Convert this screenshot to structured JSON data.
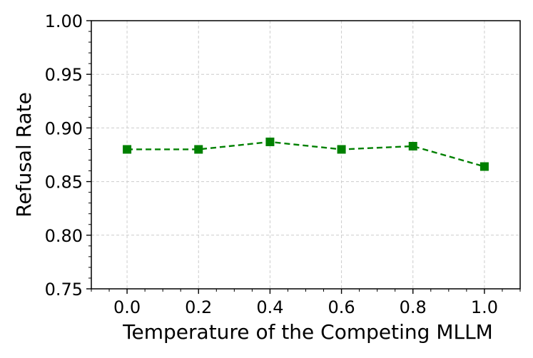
{
  "chart_data": {
    "type": "line",
    "title": "",
    "xlabel": "Temperature of the Competing MLLM",
    "ylabel": "Refusal Rate",
    "x": [
      0.0,
      0.2,
      0.4,
      0.6,
      0.8,
      1.0
    ],
    "series": [
      {
        "values": [
          0.88,
          0.88,
          0.887,
          0.88,
          0.883,
          0.864
        ],
        "color": "#008000",
        "line_style": "dashed",
        "marker": "square"
      }
    ],
    "xlim": [
      -0.1,
      1.1
    ],
    "ylim": [
      0.75,
      1.0
    ],
    "x_ticks": [
      "0.0",
      "0.2",
      "0.4",
      "0.6",
      "0.8",
      "1.0"
    ],
    "y_ticks": [
      "0.75",
      "0.80",
      "0.85",
      "0.90",
      "0.95",
      "1.00"
    ],
    "grid": true,
    "legend": "none"
  }
}
